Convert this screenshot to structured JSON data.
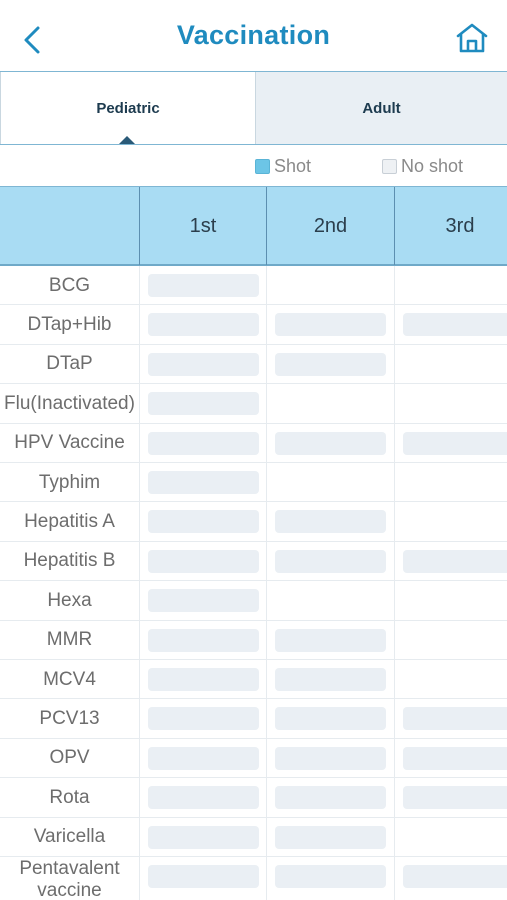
{
  "header": {
    "title": "Vaccination",
    "back_icon": "chevron-left-icon",
    "home_icon": "home-icon",
    "accent_color": "#1f8bbf"
  },
  "tabs": [
    {
      "label": "Pediatric",
      "selected": true
    },
    {
      "label": "Adult",
      "selected": false
    }
  ],
  "legend": {
    "shot_label": "Shot",
    "no_shot_label": "No shot",
    "shot_color": "#6cc5e6",
    "no_shot_color": "#eef1f4"
  },
  "table": {
    "columns": [
      "",
      "1st",
      "2nd",
      "3rd"
    ],
    "rows": [
      {
        "name": "BCG",
        "doses": [
          true,
          false,
          false
        ]
      },
      {
        "name": "DTap+Hib",
        "doses": [
          true,
          true,
          true
        ]
      },
      {
        "name": "DTaP",
        "doses": [
          true,
          true,
          false
        ]
      },
      {
        "name": "Flu(Inactivated)",
        "doses": [
          true,
          false,
          false
        ]
      },
      {
        "name": "HPV Vaccine",
        "doses": [
          true,
          true,
          true
        ]
      },
      {
        "name": "Typhim",
        "doses": [
          true,
          false,
          false
        ]
      },
      {
        "name": "Hepatitis A",
        "doses": [
          true,
          true,
          false
        ]
      },
      {
        "name": "Hepatitis B",
        "doses": [
          true,
          true,
          true
        ]
      },
      {
        "name": "Hexa",
        "doses": [
          true,
          false,
          false
        ]
      },
      {
        "name": "MMR",
        "doses": [
          true,
          true,
          false
        ]
      },
      {
        "name": "MCV4",
        "doses": [
          true,
          true,
          false
        ]
      },
      {
        "name": "PCV13",
        "doses": [
          true,
          true,
          true
        ]
      },
      {
        "name": "OPV",
        "doses": [
          true,
          true,
          true
        ]
      },
      {
        "name": "Rota",
        "doses": [
          true,
          true,
          true
        ]
      },
      {
        "name": "Varicella",
        "doses": [
          true,
          true,
          false
        ]
      },
      {
        "name": "Pentavalent vaccine",
        "doses": [
          true,
          true,
          true
        ]
      }
    ]
  }
}
